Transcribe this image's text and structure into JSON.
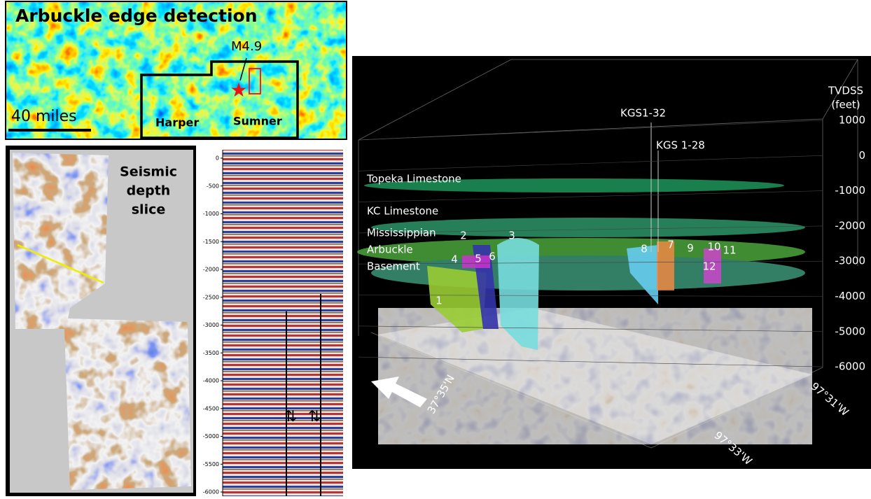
{
  "map_panel": {
    "title": "Arbuckle edge detection",
    "event_label": "M4.9",
    "scale_label": "40 miles",
    "county_labels": [
      "Harper",
      "Sumner"
    ]
  },
  "depth_slice": {
    "title_lines": [
      "Seismic",
      "depth",
      "slice"
    ]
  },
  "seismic_section": {
    "depth_ticks": [
      0,
      -500,
      -1000,
      -1500,
      -2000,
      -2500,
      -3000,
      -3500,
      -4000,
      -4500,
      -5000,
      -5500,
      -6000
    ]
  },
  "volume_3d": {
    "axis_title_lines": [
      "TVDSS",
      "(feet)"
    ],
    "depth_ticks": [
      1000,
      0,
      -1000,
      -2000,
      -3000,
      -4000,
      -5000,
      -6000
    ],
    "horizons": [
      "Topeka Limestone",
      "KC Limestone",
      "Mississippian",
      "Arbuckle",
      "Basement"
    ],
    "wells": [
      "KGS1-32",
      "KGS 1-28"
    ],
    "fault_labels": [
      1,
      2,
      3,
      4,
      5,
      6,
      7,
      8,
      9,
      10,
      11,
      12
    ],
    "coordinates": [
      "37°35'N",
      "97°33'W",
      "97°31'W"
    ]
  }
}
